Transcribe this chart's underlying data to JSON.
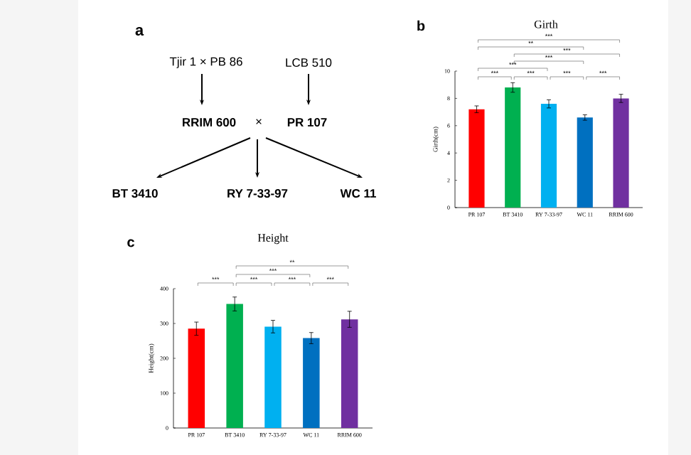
{
  "chart_data": [
    {
      "type": "other",
      "title": "a",
      "annotations": [
        "Tjir 1 × PB 86",
        "LCB 510",
        "RRIM 600",
        "×",
        "PR 107",
        "BT 3410",
        "RY 7-33-97",
        "WC 11"
      ]
    },
    {
      "type": "bar",
      "title": "Girth",
      "ylabel": "Girth(cm)",
      "categories": [
        "PR 107",
        "BT 3410",
        "RY 7-33-97",
        "WC 11",
        "RRIM 600"
      ],
      "values": [
        7.2,
        8.8,
        7.6,
        6.6,
        8.0
      ],
      "errors": [
        0.25,
        0.35,
        0.3,
        0.2,
        0.3
      ],
      "colors": [
        "#ff0000",
        "#00b050",
        "#00b0f0",
        "#0070c0",
        "#7030a0"
      ],
      "ylim": [
        0,
        10
      ],
      "yticks": [
        0,
        2,
        4,
        6,
        8,
        10
      ],
      "annotations": [
        "b",
        "***",
        "**",
        "***",
        "***",
        "***",
        "***",
        "***",
        "***",
        "***"
      ]
    },
    {
      "type": "bar",
      "title": "Height",
      "ylabel": "Height(cm)",
      "categories": [
        "PR 107",
        "BT 3410",
        "RY 7-33-97",
        "WC 11",
        "RRIM 600"
      ],
      "values": [
        285,
        356,
        291,
        258,
        312
      ],
      "errors": [
        19,
        20,
        18,
        16,
        23
      ],
      "colors": [
        "#ff0000",
        "#00b050",
        "#00b0f0",
        "#0070c0",
        "#7030a0"
      ],
      "ylim": [
        0,
        400
      ],
      "yticks": [
        0,
        100,
        200,
        300,
        400
      ],
      "annotations": [
        "c",
        "**",
        "***",
        "***",
        "***",
        "***",
        "***"
      ]
    }
  ]
}
